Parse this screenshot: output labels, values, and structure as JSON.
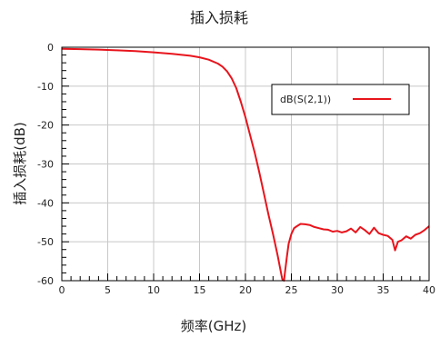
{
  "chart_data": {
    "type": "line",
    "title": "插入损耗",
    "xlabel": "频率(GHz)",
    "ylabel": "插入损耗(dB)",
    "xlim": [
      0,
      40
    ],
    "ylim": [
      -60,
      0
    ],
    "xticks": [
      "0",
      "5",
      "10",
      "15",
      "20",
      "25",
      "30",
      "35",
      "40"
    ],
    "yticks": [
      "0",
      "-10",
      "-20",
      "-30",
      "-40",
      "-50",
      "-60"
    ],
    "grid": true,
    "legend_position": "top-right",
    "series": [
      {
        "name": "dB(S(2,1))",
        "color": "#e8141c",
        "x": [
          0,
          2,
          4,
          6,
          8,
          10,
          12,
          14,
          15,
          16,
          17,
          17.5,
          18,
          18.5,
          19,
          19.5,
          20,
          20.5,
          21,
          21.5,
          22,
          22.5,
          23,
          23.5,
          24,
          24.2,
          24.3,
          24.5,
          24.7,
          25,
          25.3,
          25.6,
          26,
          26.5,
          27,
          27.5,
          28,
          28.5,
          29,
          29.5,
          30,
          30.5,
          31,
          31.5,
          32,
          32.5,
          33,
          33.5,
          34,
          34.5,
          35,
          35.5,
          36,
          36.3,
          36.6,
          37,
          37.5,
          38,
          38.5,
          39,
          39.5,
          40
        ],
        "y": [
          -0.4,
          -0.5,
          -0.6,
          -0.8,
          -1.0,
          -1.3,
          -1.7,
          -2.2,
          -2.6,
          -3.2,
          -4.2,
          -5.0,
          -6.2,
          -8.0,
          -10.5,
          -14.0,
          -18.0,
          -22.5,
          -27.0,
          -32.0,
          -37.5,
          -43.0,
          -48.0,
          -53.5,
          -59.5,
          -60.0,
          -58.0,
          -54.0,
          -50.5,
          -48.0,
          -46.5,
          -46.0,
          -45.4,
          -45.5,
          -45.7,
          -46.2,
          -46.5,
          -46.8,
          -46.9,
          -47.4,
          -47.2,
          -47.6,
          -47.3,
          -46.6,
          -47.6,
          -46.2,
          -47.0,
          -48.0,
          -46.4,
          -47.8,
          -48.2,
          -48.5,
          -49.5,
          -52.2,
          -50.0,
          -49.6,
          -48.6,
          -49.2,
          -48.2,
          -47.8,
          -47.0,
          -46.0
        ]
      }
    ]
  }
}
